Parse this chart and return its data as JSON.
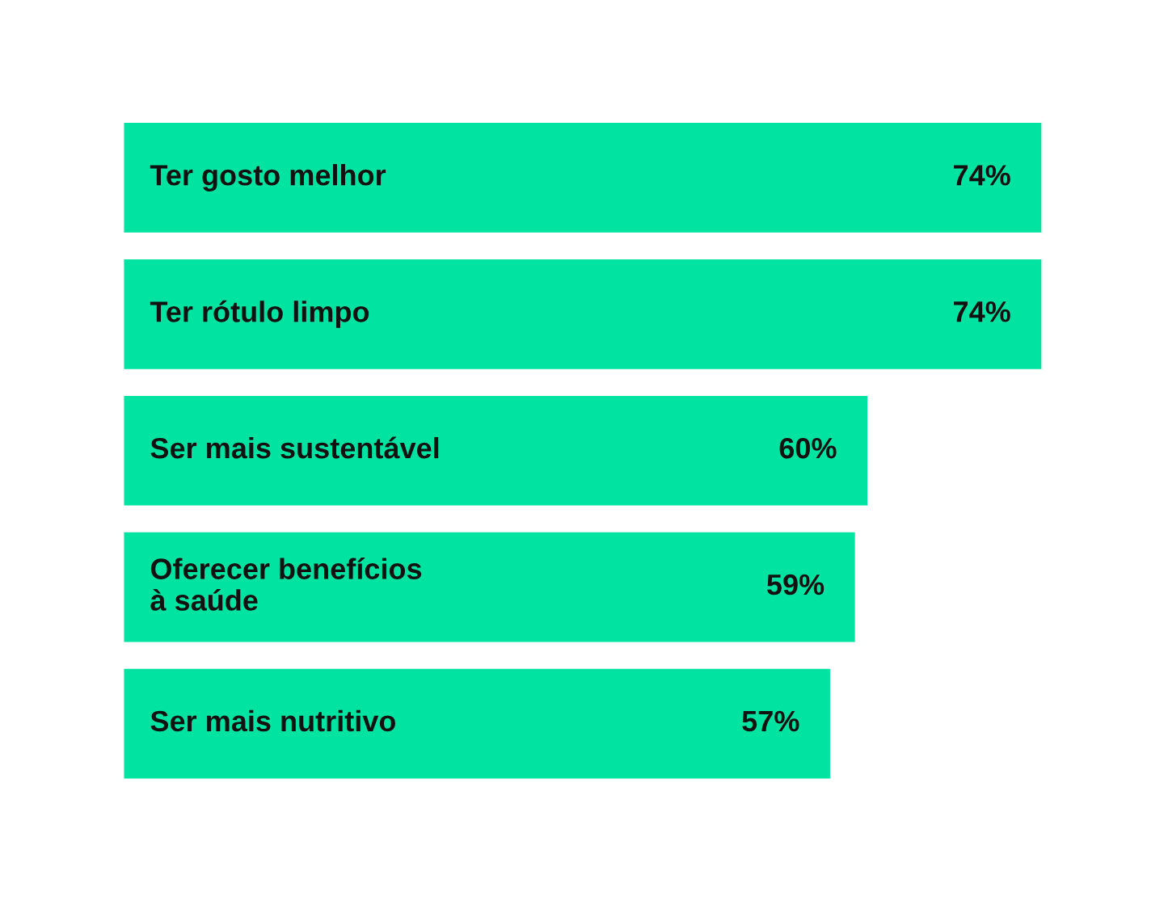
{
  "chart_data": {
    "type": "bar",
    "orientation": "horizontal",
    "categories": [
      "Ter gosto melhor",
      "Ter rótulo limpo",
      "Ser mais sustentável",
      "Oferecer benefícios\nà saúde",
      "Ser mais nutritivo"
    ],
    "values": [
      74,
      74,
      60,
      59,
      57
    ],
    "value_labels": [
      "74%",
      "74%",
      "60%",
      "59%",
      "57%"
    ],
    "color": "#00e3a1"
  }
}
